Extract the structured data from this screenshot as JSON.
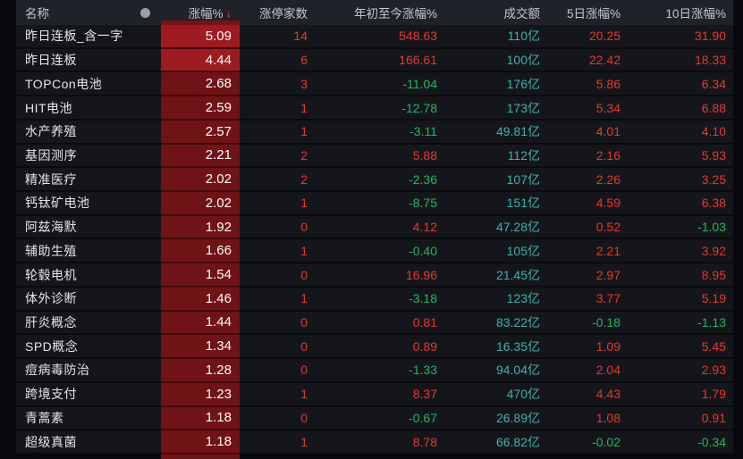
{
  "header": {
    "name": "名称",
    "dot": "",
    "pct": "涨幅%",
    "sort_arrow": "↓",
    "limit_up": "涨停家数",
    "ytd": "年初至今涨幅%",
    "turnover": "成交额",
    "d5": "5日涨幅%",
    "d10": "10日涨幅%"
  },
  "colors": {
    "up": "#e6382e",
    "down": "#1fb863",
    "turnover": "#3db3ab",
    "cell-red": "#701316",
    "cell-red-hot": "#9e1b22",
    "arrow": "#e8402f"
  },
  "rows": [
    {
      "name": "昨日连板_含一字",
      "pct": "5.09",
      "limit_up": "14",
      "ytd": "548.63",
      "turnover": "110亿",
      "d5": "20.25",
      "d10": "31.90"
    },
    {
      "name": "昨日连板",
      "pct": "4.44",
      "limit_up": "6",
      "ytd": "166.61",
      "turnover": "100亿",
      "d5": "22.42",
      "d10": "18.33"
    },
    {
      "name": "TOPCon电池",
      "pct": "2.68",
      "limit_up": "3",
      "ytd": "-11.04",
      "turnover": "176亿",
      "d5": "5.86",
      "d10": "6.34"
    },
    {
      "name": "HIT电池",
      "pct": "2.59",
      "limit_up": "1",
      "ytd": "-12.78",
      "turnover": "173亿",
      "d5": "5.34",
      "d10": "6.88"
    },
    {
      "name": "水产养殖",
      "pct": "2.57",
      "limit_up": "1",
      "ytd": "-3.11",
      "turnover": "49.81亿",
      "d5": "4.01",
      "d10": "4.10"
    },
    {
      "name": "基因测序",
      "pct": "2.21",
      "limit_up": "2",
      "ytd": "5.88",
      "turnover": "112亿",
      "d5": "2.16",
      "d10": "5.93"
    },
    {
      "name": "精准医疗",
      "pct": "2.02",
      "limit_up": "2",
      "ytd": "-2.36",
      "turnover": "107亿",
      "d5": "2.26",
      "d10": "3.25"
    },
    {
      "name": "钙钛矿电池",
      "pct": "2.02",
      "limit_up": "1",
      "ytd": "-8.75",
      "turnover": "151亿",
      "d5": "4.59",
      "d10": "6.38"
    },
    {
      "name": "阿兹海默",
      "pct": "1.92",
      "limit_up": "0",
      "ytd": "4.12",
      "turnover": "47.28亿",
      "d5": "0.52",
      "d10": "-1.03"
    },
    {
      "name": "辅助生殖",
      "pct": "1.66",
      "limit_up": "1",
      "ytd": "-0.40",
      "turnover": "105亿",
      "d5": "2.21",
      "d10": "3.92"
    },
    {
      "name": "轮毂电机",
      "pct": "1.54",
      "limit_up": "0",
      "ytd": "16.96",
      "turnover": "21.45亿",
      "d5": "2.97",
      "d10": "8.95"
    },
    {
      "name": "体外诊断",
      "pct": "1.46",
      "limit_up": "1",
      "ytd": "-3.18",
      "turnover": "123亿",
      "d5": "3.77",
      "d10": "5.19"
    },
    {
      "name": "肝炎概念",
      "pct": "1.44",
      "limit_up": "0",
      "ytd": "0.81",
      "turnover": "83.22亿",
      "d5": "-0.18",
      "d10": "-1.13"
    },
    {
      "name": "SPD概念",
      "pct": "1.34",
      "limit_up": "0",
      "ytd": "0.89",
      "turnover": "16.35亿",
      "d5": "1.09",
      "d10": "5.45"
    },
    {
      "name": "痘病毒防治",
      "pct": "1.28",
      "limit_up": "0",
      "ytd": "-1.33",
      "turnover": "94.04亿",
      "d5": "2.04",
      "d10": "2.93"
    },
    {
      "name": "跨境支付",
      "pct": "1.23",
      "limit_up": "1",
      "ytd": "8.37",
      "turnover": "470亿",
      "d5": "4.43",
      "d10": "1.79"
    },
    {
      "name": "青蒿素",
      "pct": "1.18",
      "limit_up": "0",
      "ytd": "-0.67",
      "turnover": "26.89亿",
      "d5": "1.08",
      "d10": "0.91"
    },
    {
      "name": "超级真菌",
      "pct": "1.18",
      "limit_up": "1",
      "ytd": "8.78",
      "turnover": "66.82亿",
      "d5": "-0.02",
      "d10": "-0.34"
    }
  ]
}
